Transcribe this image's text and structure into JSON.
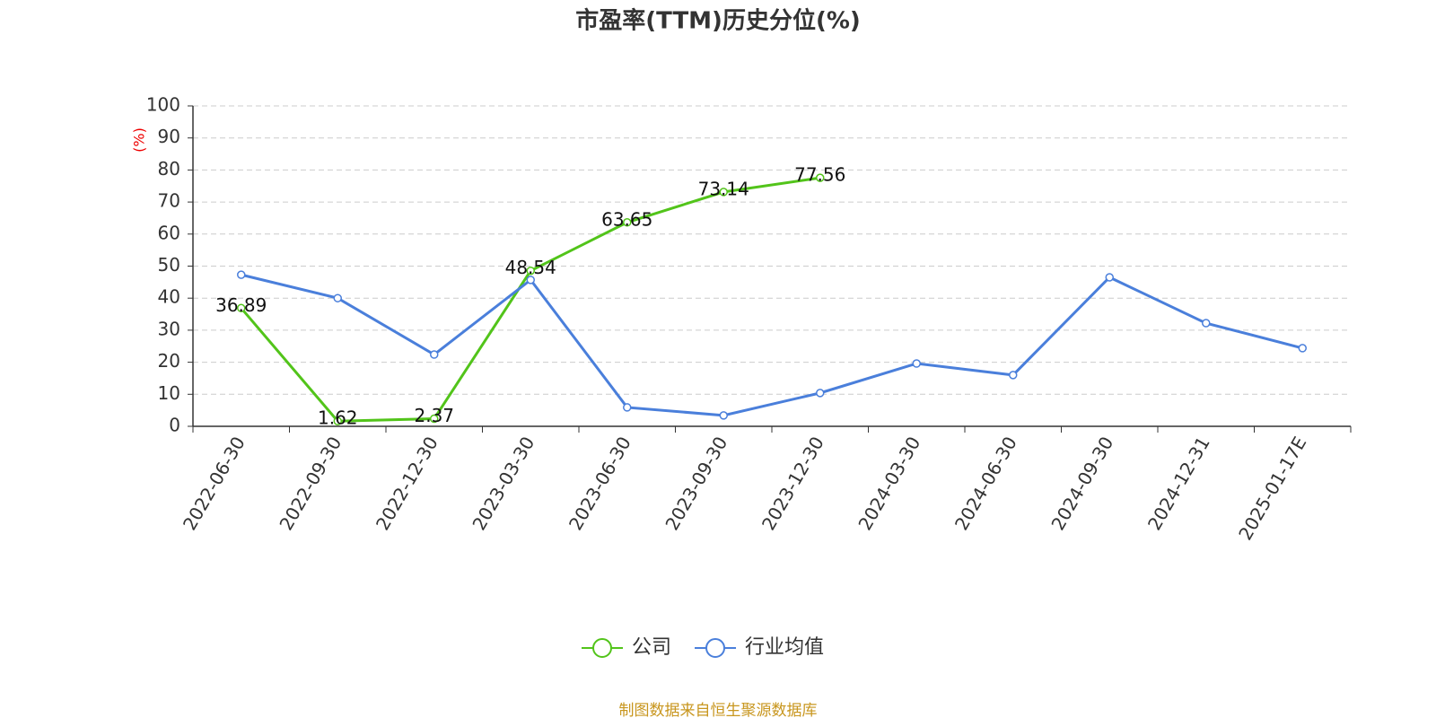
{
  "chart_data": {
    "type": "line",
    "title": "市盈率(TTM)历史分位(%)",
    "y_label": "(%)",
    "source": "制图数据来自恒生聚源数据库",
    "categories": [
      "2022-06-30",
      "2022-09-30",
      "2022-12-30",
      "2023-03-30",
      "2023-06-30",
      "2023-09-30",
      "2023-12-30",
      "2024-03-30",
      "2024-06-30",
      "2024-09-30",
      "2024-12-31",
      "2025-01-17E"
    ],
    "series": [
      {
        "name": "公司",
        "color": "#52c41a",
        "values": [
          36.89,
          1.62,
          2.37,
          48.54,
          63.65,
          73.14,
          77.56,
          null,
          null,
          null,
          null,
          null
        ]
      },
      {
        "name": "行业均值",
        "color": "#4a7fdb",
        "values": [
          47.3,
          40.0,
          22.4,
          45.7,
          5.9,
          3.4,
          10.4,
          19.6,
          16.0,
          46.5,
          32.2,
          24.4
        ]
      }
    ],
    "ylim": [
      0,
      100
    ],
    "yticks": [
      0,
      10,
      20,
      30,
      40,
      50,
      60,
      70,
      80,
      90,
      100
    ],
    "grid": true,
    "legend": "bottom"
  }
}
